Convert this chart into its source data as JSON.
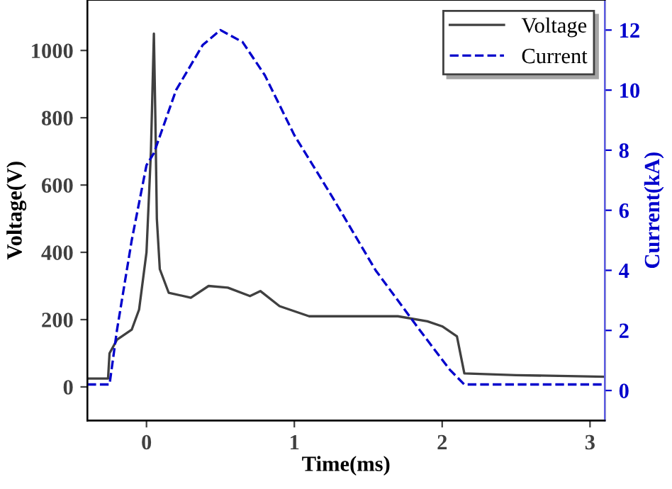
{
  "chart_data": {
    "type": "line",
    "xlabel": "Time(ms)",
    "ylabel": "Voltage(V)",
    "y2label": "Current(kA)",
    "xlim": [
      -0.4,
      3.1
    ],
    "xticks": [
      0,
      1,
      2,
      3
    ],
    "ylim": [
      -100,
      1150
    ],
    "yticks": [
      0,
      200,
      400,
      600,
      800,
      1000
    ],
    "y2lim": [
      -1,
      13
    ],
    "y2ticks": [
      0,
      2,
      4,
      6,
      8,
      10,
      12
    ],
    "legend": "top right",
    "grid": false,
    "series": [
      {
        "name": "Voltage",
        "color": "#404040",
        "line_style": "solid",
        "x": [
          -0.4,
          -0.26,
          -0.25,
          -0.2,
          -0.1,
          -0.05,
          0.0,
          0.03,
          0.05,
          0.06,
          0.07,
          0.09,
          0.15,
          0.3,
          0.42,
          0.55,
          0.7,
          0.77,
          0.9,
          1.1,
          1.4,
          1.7,
          1.9,
          2.0,
          2.1,
          2.15,
          2.5,
          3.1
        ],
        "values": [
          25,
          25,
          100,
          140,
          170,
          230,
          400,
          700,
          1050,
          800,
          500,
          350,
          280,
          265,
          300,
          295,
          270,
          285,
          240,
          210,
          210,
          210,
          195,
          180,
          150,
          40,
          35,
          30
        ]
      },
      {
        "name": "Current",
        "color": "#0000cc",
        "line_style": "dashed",
        "axis": "y2",
        "x": [
          -0.4,
          -0.25,
          -0.2,
          -0.1,
          0.0,
          0.05,
          0.2,
          0.38,
          0.5,
          0.65,
          0.8,
          1.0,
          1.25,
          1.55,
          1.85,
          2.05,
          2.15,
          3.1
        ],
        "values": [
          0.2,
          0.2,
          2,
          5,
          7.5,
          7.9,
          10,
          11.5,
          12,
          11.6,
          10.5,
          8.5,
          6.5,
          4,
          2,
          0.7,
          0.2,
          0.2
        ]
      }
    ]
  }
}
